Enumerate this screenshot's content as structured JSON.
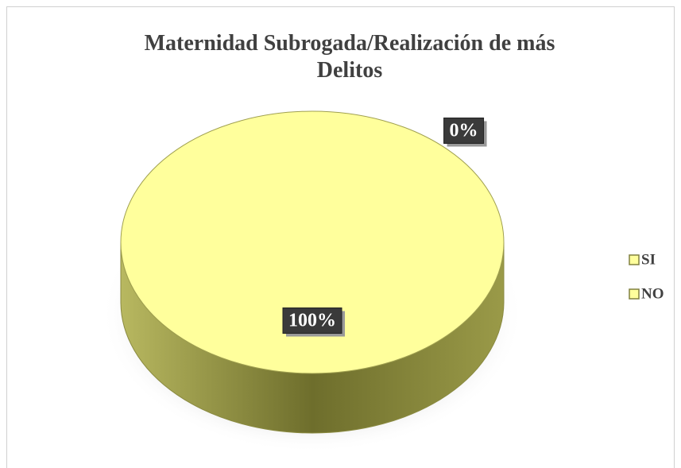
{
  "chart_data": {
    "type": "pie",
    "title": "Maternidad Subrogada/Realización de más Delitos",
    "categories": [
      "SI",
      "NO"
    ],
    "values": [
      0,
      100
    ],
    "value_labels": [
      "0%",
      "100%"
    ],
    "colors": [
      "#ffff9c",
      "#ffff9c"
    ],
    "legend": "right"
  }
}
